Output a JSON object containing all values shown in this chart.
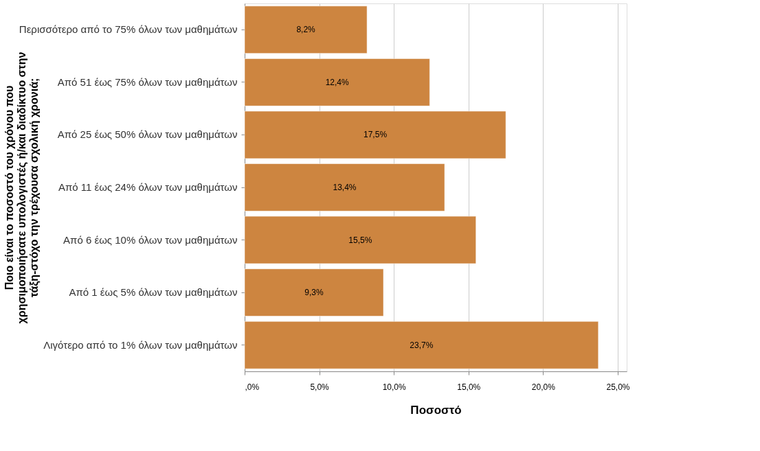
{
  "chart_data": {
    "type": "bar",
    "orientation": "horizontal",
    "categories": [
      "Περισσότερο από το 75% όλων των μαθημάτων",
      "Από 51 έως 75% όλων των μαθημάτων",
      "Από 25 έως 50% όλων των μαθημάτων",
      "Από 11 έως 24% όλων των μαθημάτων",
      "Από 6 έως 10% όλων των μαθημάτων",
      "Από 1 έως 5% όλων των μαθημάτων",
      "Λιγότερο από το 1% όλων των μαθημάτων"
    ],
    "values": [
      8.2,
      12.4,
      17.5,
      13.4,
      15.5,
      9.3,
      23.7
    ],
    "value_labels": [
      "8,2%",
      "12,4%",
      "17,5%",
      "13,4%",
      "15,5%",
      "9,3%",
      "23,7%"
    ],
    "color": "#cd8540",
    "xlabel": "Ποσοστό",
    "ylabel": "Ποιο είναι το ποσοστό του χρόνου που\nχρησιμοποιήσατε υπολογιστές ή/και διαδίκτυο στην\nτάξη-στόχο την τρέχουσα σχολική χρονιά;",
    "xlim": [
      0,
      25.6
    ],
    "xticks": [
      {
        "value": 0,
        "label": ",0%"
      },
      {
        "value": 5,
        "label": "5,0%"
      },
      {
        "value": 10,
        "label": "10,0%"
      },
      {
        "value": 15,
        "label": "15,0%"
      },
      {
        "value": 20,
        "label": "20,0%"
      },
      {
        "value": 25,
        "label": "25,0%"
      }
    ],
    "grid": "x"
  }
}
